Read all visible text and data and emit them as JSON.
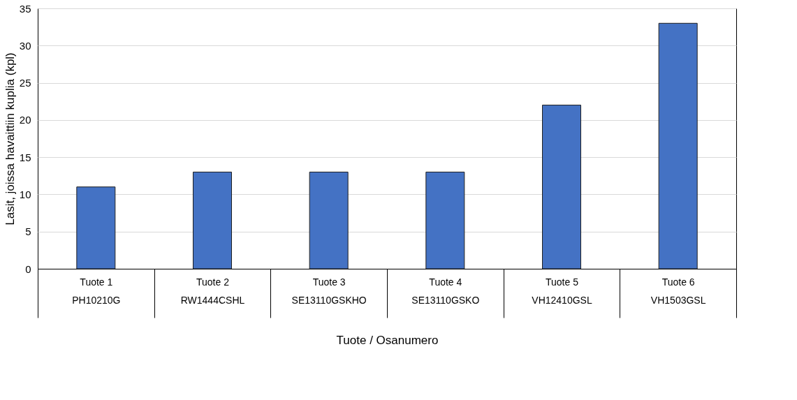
{
  "chart_data": {
    "type": "bar",
    "xlabel": "Tuote / Osanumero",
    "ylabel": "Lasit, joissa havaittiin kuplia (kpl)",
    "categories": [
      "Tuote 1\nPH10210G",
      "Tuote 2\nRW1444CSHL",
      "Tuote 3\nSE13110GSKHO",
      "Tuote 4\nSE13110GSKO",
      "Tuote 5\nVH12410GSL",
      "Tuote 6\nVH1503GSL"
    ],
    "values": [
      11,
      13,
      13,
      13,
      22,
      33
    ],
    "color": "#4472c4",
    "ylim": [
      0,
      35
    ],
    "yticks": [
      0,
      5,
      10,
      15,
      20,
      25,
      30,
      35
    ],
    "grid": "y"
  }
}
